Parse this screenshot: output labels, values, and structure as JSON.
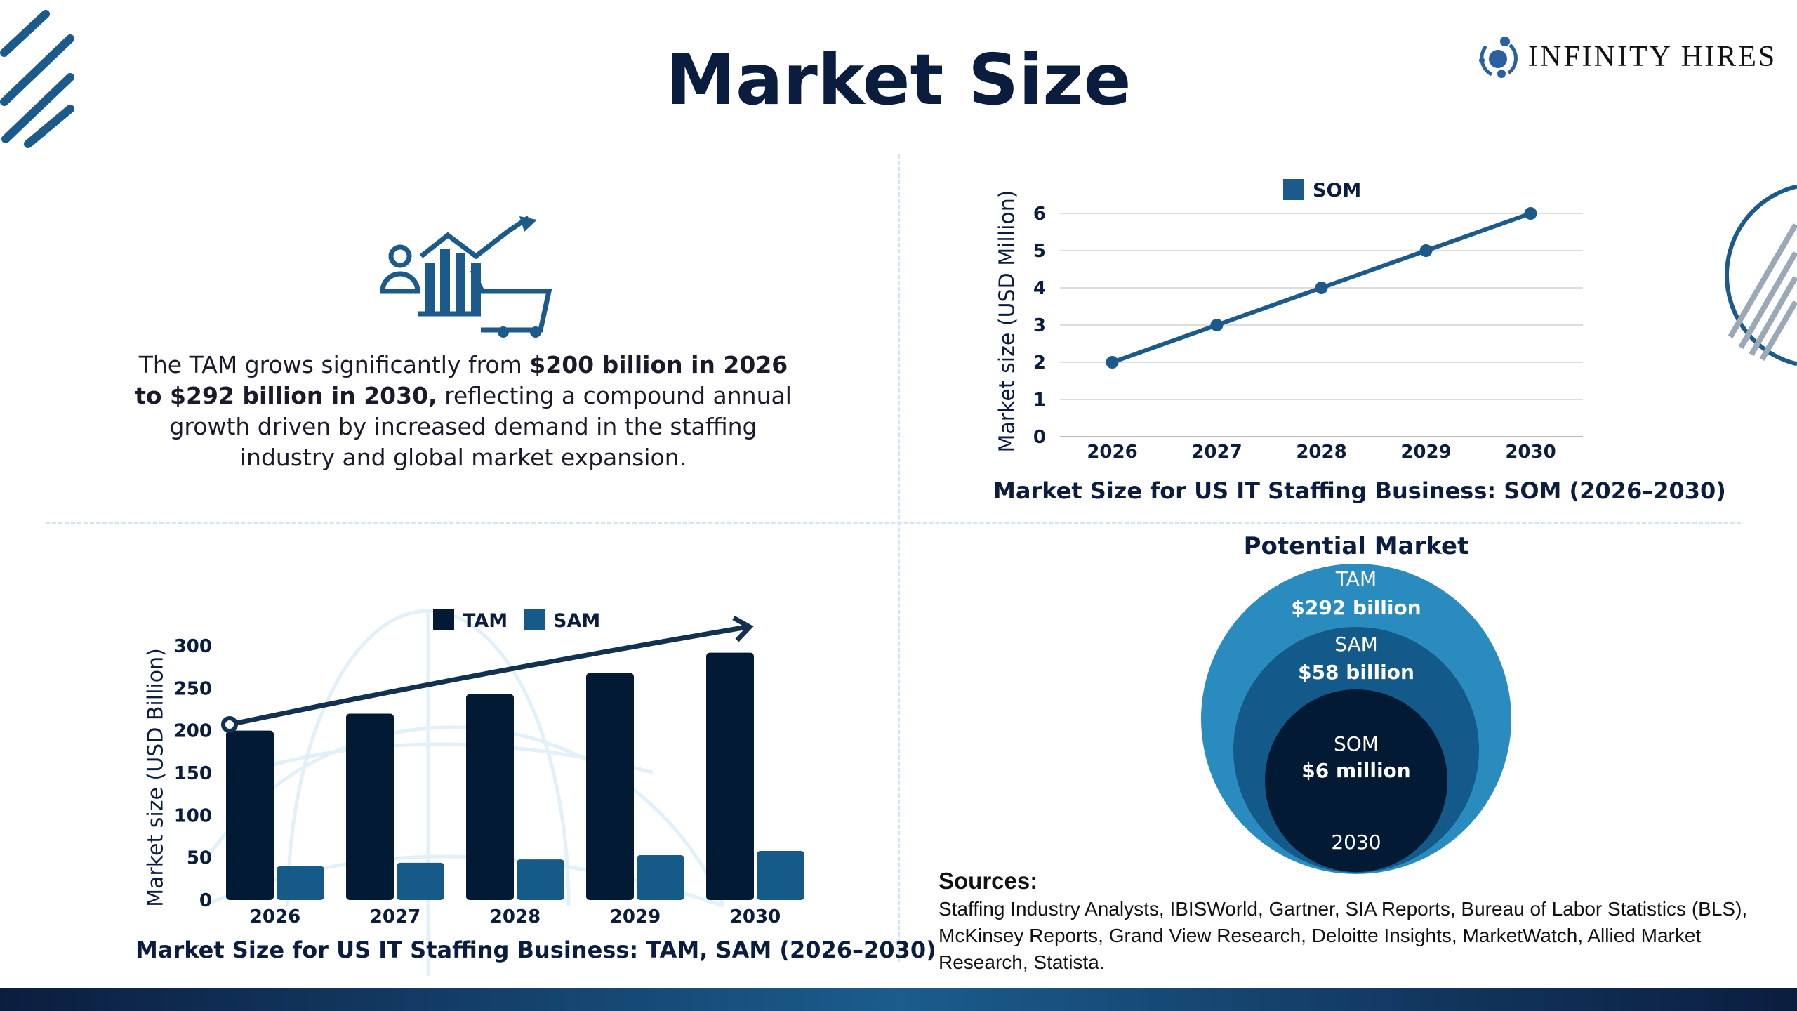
{
  "header": {
    "title": "Market Size",
    "logo_text": "INFINITY HIRES"
  },
  "summary": {
    "pre": "The TAM grows significantly from ",
    "bold": "$200 billion in 2026 to $292 billion in 2030,",
    "post": " reflecting a compound annual growth driven by increased demand in the staffing industry and global market expansion."
  },
  "chart_data": [
    {
      "type": "line",
      "title": "Market Size for US IT Staffing Business: SOM (2026–2030)",
      "ylabel": "Market size (USD Million)",
      "xlabel": "",
      "categories": [
        "2026",
        "2027",
        "2028",
        "2029",
        "2030"
      ],
      "series": [
        {
          "name": "SOM",
          "values": [
            2,
            3,
            4,
            5,
            6
          ]
        }
      ],
      "ylim": [
        0,
        6
      ],
      "yticks": [
        "0",
        "1",
        "2",
        "3",
        "4",
        "5",
        "6"
      ],
      "grid": true,
      "legend": "top",
      "color": "#1b5a8a"
    },
    {
      "type": "bar",
      "title": "Market Size for US IT Staffing Business: TAM, SAM (2026–2030)",
      "ylabel": "Market size (USD Billion)",
      "xlabel": "",
      "categories": [
        "2026",
        "2027",
        "2028",
        "2029",
        "2030"
      ],
      "series": [
        {
          "name": "TAM",
          "values": [
            200,
            220,
            243,
            268,
            292
          ],
          "color": "#021a33"
        },
        {
          "name": "SAM",
          "values": [
            40,
            44,
            48,
            53,
            58
          ],
          "color": "#155a88"
        }
      ],
      "ylim": [
        0,
        300
      ],
      "yticks": [
        "0",
        "50",
        "100",
        "150",
        "200",
        "250",
        "300"
      ],
      "grid": false,
      "legend": "top"
    }
  ],
  "potential_market": {
    "title": "Potential Market",
    "tam_label": "TAM",
    "tam_value": "$292 billion",
    "sam_label": "SAM",
    "sam_value": "$58 billion",
    "som_label": "SOM",
    "som_value": "$6 million",
    "year": "2030",
    "colors": {
      "tam": "#2a8bbf",
      "sam": "#135a8a",
      "som": "#021a33"
    }
  },
  "sources": {
    "heading": "Sources:",
    "text": "Staffing Industry Analysts, IBISWorld, Gartner, SIA Reports, Bureau of Labor Statistics (BLS), McKinsey Reports, Grand View Research, Deloitte Insights, MarketWatch, Allied Market Research, Statista."
  }
}
